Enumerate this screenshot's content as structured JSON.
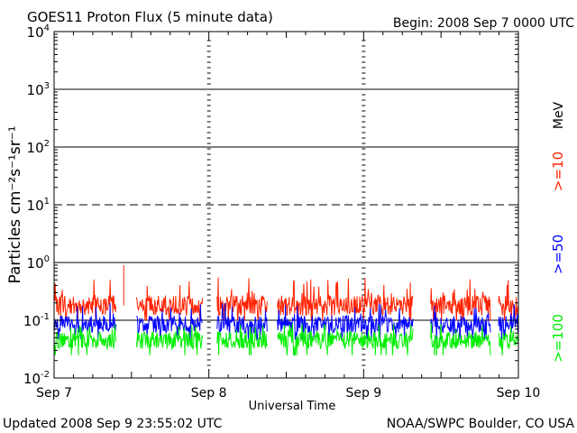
{
  "chart_data": {
    "type": "line",
    "title": "GOES11 Proton Flux (5 minute data)",
    "begin_label": "Begin: 2008 Sep 7 0000 UTC",
    "ylabel": "Particles cm⁻²s⁻¹sr⁻¹",
    "xlabel": "Universal Time",
    "x_ticks": [
      "Sep 7",
      "Sep 8",
      "Sep 9",
      "Sep 10"
    ],
    "y_ticks": [
      {
        "base": "10",
        "exp": "4"
      },
      {
        "base": "10",
        "exp": "3"
      },
      {
        "base": "10",
        "exp": "2"
      },
      {
        "base": "10",
        "exp": "1"
      },
      {
        "base": "10",
        "exp": "0"
      },
      {
        "base": "10",
        "exp": "-1"
      },
      {
        "base": "10",
        "exp": "-2"
      }
    ],
    "yscale": "log",
    "ylim": [
      0.01,
      10000
    ],
    "xlim_days": [
      0,
      3
    ],
    "unit_label": "MeV",
    "series": [
      {
        "name": ">=10",
        "color": "#ff2200",
        "mean": 0.18,
        "spread": 0.35,
        "spike_max": 0.55
      },
      {
        "name": ">=50",
        "color": "#0000ff",
        "mean": 0.085,
        "spread": 0.3,
        "spike_max": 0.2
      },
      {
        "name": ">=100",
        "color": "#00ee00",
        "mean": 0.045,
        "spread": 0.3,
        "spike_max": 0.09
      }
    ],
    "data_gaps_days": [
      [
        0.4,
        0.53
      ],
      [
        0.96,
        1.05
      ],
      [
        1.38,
        1.44
      ],
      [
        2.32,
        2.43
      ],
      [
        2.82,
        2.87
      ]
    ],
    "outlier": {
      "x_day": 0.45,
      "value": 0.9
    },
    "horizontal_lines": [
      {
        "value": 1000,
        "style": "solid"
      },
      {
        "value": 100,
        "style": "solid"
      },
      {
        "value": 10,
        "style": "dashed"
      },
      {
        "value": 1,
        "style": "solid"
      },
      {
        "value": 0.1,
        "style": "solid"
      }
    ]
  },
  "footer": {
    "updated": "Updated 2008 Sep  9 23:55:02 UTC",
    "source": "NOAA/SWPC Boulder, CO USA"
  }
}
